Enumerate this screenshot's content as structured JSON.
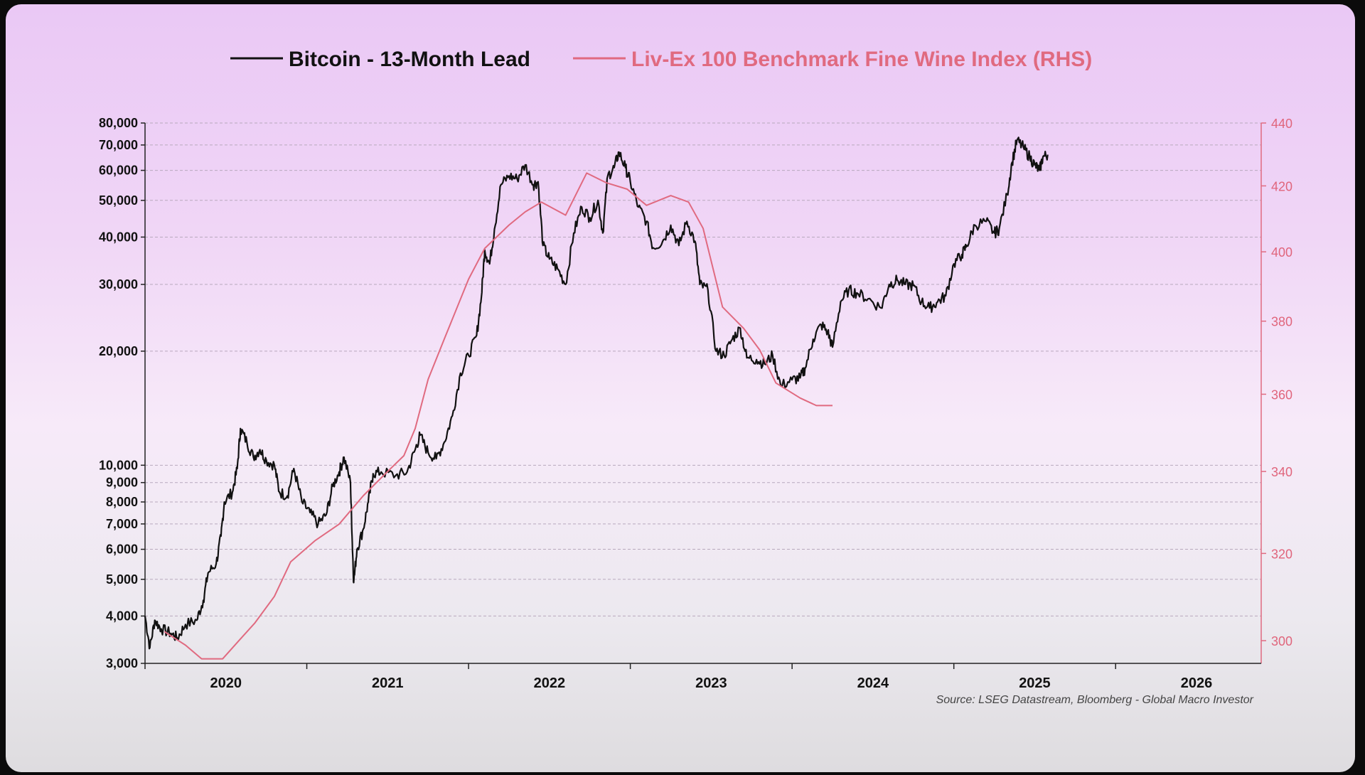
{
  "chart_data": {
    "type": "line",
    "legend": [
      {
        "label": "Bitcoin - 13-Month Lead",
        "color": "#111111"
      },
      {
        "label": "Liv-Ex 100 Benchmark Fine Wine Index (RHS)",
        "color": "#e06a80"
      }
    ],
    "left_axis": {
      "scale": "log",
      "range": [
        3000,
        80000
      ],
      "ticks": [
        {
          "v": 80000,
          "label": "80,000"
        },
        {
          "v": 70000,
          "label": "70,000"
        },
        {
          "v": 60000,
          "label": "60,000"
        },
        {
          "v": 50000,
          "label": "50,000"
        },
        {
          "v": 40000,
          "label": "40,000"
        },
        {
          "v": 30000,
          "label": "30,000"
        },
        {
          "v": 20000,
          "label": "20,000"
        },
        {
          "v": 10000,
          "label": "10,000"
        },
        {
          "v": 9000,
          "label": "9,000"
        },
        {
          "v": 8000,
          "label": "8,000"
        },
        {
          "v": 7000,
          "label": "7,000"
        },
        {
          "v": 6000,
          "label": "6,000"
        },
        {
          "v": 5000,
          "label": "5,000"
        },
        {
          "v": 4000,
          "label": "4,000"
        },
        {
          "v": 3000,
          "label": "3,000"
        }
      ]
    },
    "right_axis": {
      "scale": "log",
      "range": [
        295,
        440
      ],
      "ticks": [
        {
          "v": 440,
          "label": "440"
        },
        {
          "v": 420,
          "label": "420"
        },
        {
          "v": 400,
          "label": "400"
        },
        {
          "v": 380,
          "label": "380"
        },
        {
          "v": 360,
          "label": "360"
        },
        {
          "v": 340,
          "label": "340"
        },
        {
          "v": 320,
          "label": "320"
        },
        {
          "v": 300,
          "label": "300"
        }
      ]
    },
    "x_axis": {
      "range": [
        2019.5,
        2026.4
      ],
      "ticks": [
        2019.5,
        2020.5,
        2021.5,
        2022.5,
        2023.5,
        2024.5,
        2025.5
      ],
      "labels": [
        {
          "x": 2020.0,
          "label": "2020"
        },
        {
          "x": 2021.0,
          "label": "2021"
        },
        {
          "x": 2022.0,
          "label": "2022"
        },
        {
          "x": 2023.0,
          "label": "2023"
        },
        {
          "x": 2024.0,
          "label": "2024"
        },
        {
          "x": 2025.0,
          "label": "2025"
        },
        {
          "x": 2026.0,
          "label": "2026"
        }
      ]
    },
    "series": [
      {
        "name": "Bitcoin - 13-Month Lead",
        "axis": "left",
        "color": "#111111",
        "points": [
          [
            2019.5,
            4000
          ],
          [
            2019.53,
            3300
          ],
          [
            2019.56,
            3900
          ],
          [
            2019.6,
            3700
          ],
          [
            2019.66,
            3600
          ],
          [
            2019.7,
            3500
          ],
          [
            2019.75,
            3800
          ],
          [
            2019.82,
            3900
          ],
          [
            2019.86,
            4400
          ],
          [
            2019.89,
            5200
          ],
          [
            2019.94,
            5500
          ],
          [
            2019.97,
            6500
          ],
          [
            2019.99,
            8000
          ],
          [
            2020.04,
            8500
          ],
          [
            2020.07,
            9800
          ],
          [
            2020.09,
            12500
          ],
          [
            2020.13,
            11500
          ],
          [
            2020.17,
            10500
          ],
          [
            2020.21,
            11000
          ],
          [
            2020.25,
            10300
          ],
          [
            2020.3,
            10000
          ],
          [
            2020.33,
            8500
          ],
          [
            2020.38,
            8300
          ],
          [
            2020.42,
            9800
          ],
          [
            2020.47,
            8000
          ],
          [
            2020.52,
            7500
          ],
          [
            2020.57,
            7000
          ],
          [
            2020.62,
            7400
          ],
          [
            2020.66,
            8800
          ],
          [
            2020.7,
            9600
          ],
          [
            2020.73,
            10500
          ],
          [
            2020.77,
            9000
          ],
          [
            2020.78,
            6500
          ],
          [
            2020.79,
            4900
          ],
          [
            2020.81,
            6000
          ],
          [
            2020.85,
            6800
          ],
          [
            2020.88,
            8000
          ],
          [
            2020.91,
            9500
          ],
          [
            2020.96,
            9600
          ],
          [
            2021.05,
            9400
          ],
          [
            2021.12,
            9600
          ],
          [
            2021.17,
            11000
          ],
          [
            2021.2,
            12000
          ],
          [
            2021.25,
            10800
          ],
          [
            2021.3,
            10400
          ],
          [
            2021.35,
            11500
          ],
          [
            2021.4,
            13500
          ],
          [
            2021.45,
            17500
          ],
          [
            2021.5,
            19500
          ],
          [
            2021.55,
            22000
          ],
          [
            2021.58,
            28000
          ],
          [
            2021.6,
            37000
          ],
          [
            2021.63,
            34000
          ],
          [
            2021.66,
            42000
          ],
          [
            2021.7,
            55000
          ],
          [
            2021.75,
            58000
          ],
          [
            2021.8,
            57000
          ],
          [
            2021.85,
            62000
          ],
          [
            2021.9,
            55000
          ],
          [
            2021.93,
            56000
          ],
          [
            2021.96,
            38000
          ],
          [
            2022.0,
            35000
          ],
          [
            2022.05,
            33000
          ],
          [
            2022.1,
            30000
          ],
          [
            2022.15,
            41000
          ],
          [
            2022.2,
            48000
          ],
          [
            2022.25,
            45000
          ],
          [
            2022.3,
            50000
          ],
          [
            2022.33,
            41000
          ],
          [
            2022.36,
            58000
          ],
          [
            2022.4,
            61000
          ],
          [
            2022.43,
            67000
          ],
          [
            2022.47,
            61000
          ],
          [
            2022.5,
            56000
          ],
          [
            2022.55,
            48000
          ],
          [
            2022.6,
            44000
          ],
          [
            2022.64,
            37500
          ],
          [
            2022.7,
            39000
          ],
          [
            2022.75,
            43000
          ],
          [
            2022.8,
            38000
          ],
          [
            2022.85,
            44000
          ],
          [
            2022.9,
            39000
          ],
          [
            2022.93,
            30000
          ],
          [
            2022.98,
            29000
          ],
          [
            2023.03,
            20000
          ],
          [
            2023.08,
            19500
          ],
          [
            2023.13,
            21500
          ],
          [
            2023.18,
            23000
          ],
          [
            2023.22,
            19200
          ],
          [
            2023.28,
            19000
          ],
          [
            2023.33,
            18500
          ],
          [
            2023.38,
            19500
          ],
          [
            2023.43,
            16200
          ],
          [
            2023.5,
            16800
          ],
          [
            2023.55,
            17000
          ],
          [
            2023.58,
            18000
          ],
          [
            2023.63,
            21500
          ],
          [
            2023.68,
            23500
          ],
          [
            2023.72,
            22500
          ],
          [
            2023.75,
            20500
          ],
          [
            2023.8,
            27000
          ],
          [
            2023.85,
            29000
          ],
          [
            2023.9,
            28500
          ],
          [
            2023.97,
            27500
          ],
          [
            2024.05,
            26000
          ],
          [
            2024.1,
            30000
          ],
          [
            2024.15,
            30800
          ],
          [
            2024.2,
            30000
          ],
          [
            2024.25,
            29800
          ],
          [
            2024.3,
            27000
          ],
          [
            2024.35,
            26000
          ],
          [
            2024.4,
            27000
          ],
          [
            2024.45,
            28000
          ],
          [
            2024.5,
            34000
          ],
          [
            2024.55,
            36000
          ],
          [
            2024.58,
            38000
          ],
          [
            2024.63,
            43000
          ],
          [
            2024.7,
            44000
          ],
          [
            2024.75,
            41000
          ],
          [
            2024.78,
            42000
          ],
          [
            2024.83,
            52000
          ],
          [
            2024.86,
            63000
          ],
          [
            2024.89,
            72000
          ],
          [
            2024.93,
            69000
          ],
          [
            2024.97,
            65000
          ],
          [
            2025.0,
            62000
          ],
          [
            2025.03,
            60000
          ],
          [
            2025.05,
            65000
          ],
          [
            2025.08,
            66000
          ]
        ]
      },
      {
        "name": "Liv-Ex 100 Benchmark Fine Wine Index (RHS)",
        "axis": "right",
        "color": "#e06a80",
        "points": [
          [
            2019.62,
            302
          ],
          [
            2019.75,
            299
          ],
          [
            2019.85,
            296
          ],
          [
            2019.98,
            296
          ],
          [
            2020.08,
            300
          ],
          [
            2020.18,
            304
          ],
          [
            2020.3,
            310
          ],
          [
            2020.4,
            318
          ],
          [
            2020.55,
            323
          ],
          [
            2020.7,
            327
          ],
          [
            2020.85,
            334
          ],
          [
            2021.0,
            340
          ],
          [
            2021.1,
            344
          ],
          [
            2021.17,
            351
          ],
          [
            2021.25,
            364
          ],
          [
            2021.35,
            375
          ],
          [
            2021.5,
            392
          ],
          [
            2021.6,
            401
          ],
          [
            2021.75,
            408
          ],
          [
            2021.85,
            412
          ],
          [
            2021.95,
            415
          ],
          [
            2022.1,
            411
          ],
          [
            2022.23,
            424
          ],
          [
            2022.35,
            421
          ],
          [
            2022.48,
            419
          ],
          [
            2022.6,
            414
          ],
          [
            2022.75,
            417
          ],
          [
            2022.86,
            415
          ],
          [
            2022.95,
            407
          ],
          [
            2023.07,
            384
          ],
          [
            2023.2,
            378
          ],
          [
            2023.3,
            372
          ],
          [
            2023.4,
            363
          ],
          [
            2023.55,
            359
          ],
          [
            2023.65,
            357
          ],
          [
            2023.75,
            357
          ]
        ]
      }
    ],
    "source": "Source: LSEG Datastream, Bloomberg - Global Macro Investor"
  }
}
